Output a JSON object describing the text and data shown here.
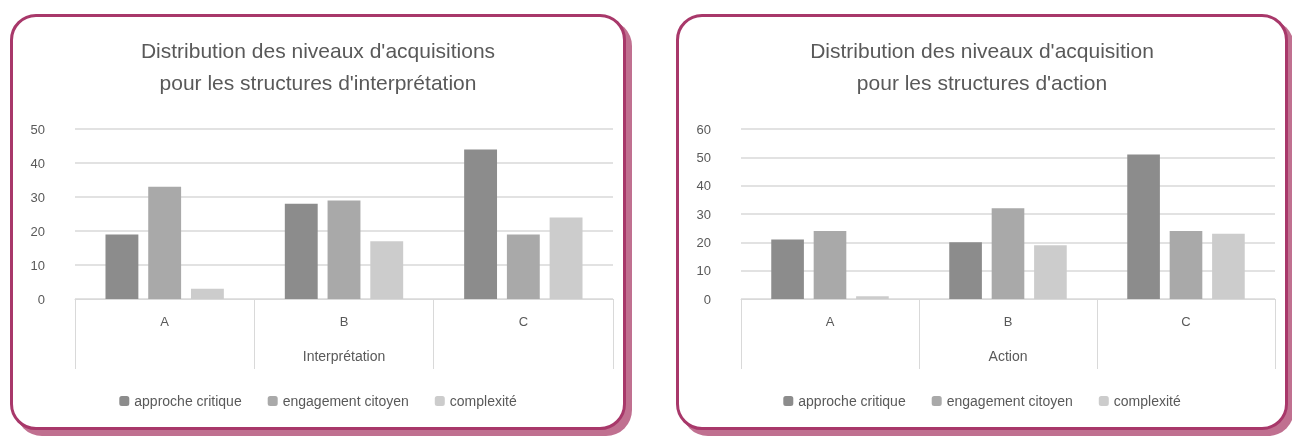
{
  "chart_data": [
    {
      "type": "bar",
      "title": "Distribution des niveaux d'acquisitions\npour les structures d'interprétation",
      "xlabel": "Interprétation",
      "categories": [
        "A",
        "B",
        "C"
      ],
      "series": [
        {
          "name": "approche critique",
          "color": "#8c8c8c",
          "values": [
            19,
            28,
            44
          ]
        },
        {
          "name": "engagement citoyen",
          "color": "#a9a9a9",
          "values": [
            33,
            29,
            19
          ]
        },
        {
          "name": "complexité",
          "color": "#cccccc",
          "values": [
            3,
            17,
            24
          ]
        }
      ],
      "ylim": [
        0,
        50
      ],
      "yticks": [
        0,
        10,
        20,
        30,
        40,
        50
      ],
      "grid": "y",
      "legend": "bottom"
    },
    {
      "type": "bar",
      "title": "Distribution des niveaux d'acquisition\npour les structures d'action",
      "xlabel": "Action",
      "categories": [
        "A",
        "B",
        "C"
      ],
      "series": [
        {
          "name": "approche critique",
          "color": "#8c8c8c",
          "values": [
            21,
            20,
            51
          ]
        },
        {
          "name": "engagement citoyen",
          "color": "#a9a9a9",
          "values": [
            24,
            32,
            24
          ]
        },
        {
          "name": "complexité",
          "color": "#cccccc",
          "values": [
            1,
            19,
            23
          ]
        }
      ],
      "ylim": [
        0,
        60
      ],
      "yticks": [
        0,
        10,
        20,
        30,
        40,
        50,
        60
      ],
      "grid": "y",
      "legend": "bottom"
    }
  ]
}
